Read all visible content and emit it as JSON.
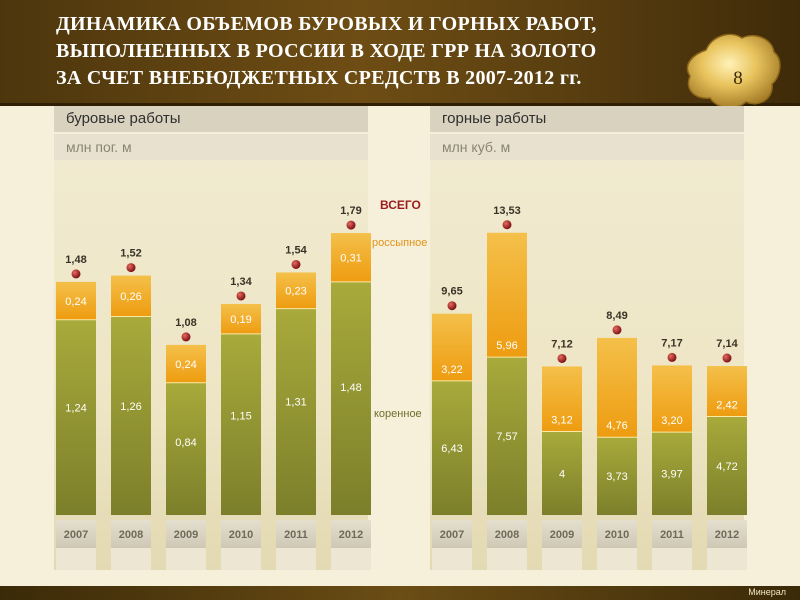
{
  "slide": {
    "title": "ДИНАМИКА ОБЪЕМОВ БУРОВЫХ И ГОРНЫХ РАБОТ,\nВЫПОЛНЕННЫХ В РОССИИ В ХОДЕ ГРР НА ЗОЛОТО\nЗА СЧЕТ ВНЕБЮДЖЕТНЫХ СРЕДСТВ В 2007-2012 гг.",
    "number": "8",
    "footer_brand": "Минерал"
  },
  "legend": {
    "total": "ВСЕГО",
    "placer": "россыпное",
    "bedrock": "коренное"
  },
  "colors": {
    "bedrock": "#8f9230",
    "placer": "#f2a717",
    "marker": "#a31f24",
    "total_label": "#9b1c1c"
  },
  "chart_data": [
    {
      "type": "bar",
      "stacked": true,
      "title": "буровые работы",
      "unit": "млн пог. м",
      "categories": [
        "2007",
        "2008",
        "2009",
        "2010",
        "2011",
        "2012"
      ],
      "series": [
        {
          "name": "коренное",
          "values": [
            1.24,
            1.26,
            0.84,
            1.15,
            1.31,
            1.48
          ],
          "labels": [
            "1,24",
            "1,26",
            "0,84",
            "1,15",
            "1,31",
            "1,48"
          ]
        },
        {
          "name": "россыпное",
          "values": [
            0.24,
            0.26,
            0.24,
            0.19,
            0.23,
            0.31
          ],
          "labels": [
            "0,24",
            "0,26",
            "0,24",
            "0,19",
            "0,23",
            "0,31"
          ]
        }
      ],
      "totals": [
        1.48,
        1.52,
        1.08,
        1.34,
        1.54,
        1.79
      ],
      "total_labels": [
        "1,48",
        "1,52",
        "1,08",
        "1,34",
        "1,54",
        "1,79"
      ],
      "ylim": [
        0,
        2.0
      ]
    },
    {
      "type": "bar",
      "stacked": true,
      "title": "горные работы",
      "unit": "млн куб. м",
      "categories": [
        "2007",
        "2008",
        "2009",
        "2010",
        "2011",
        "2012"
      ],
      "series": [
        {
          "name": "коренное",
          "values": [
            6.43,
            7.57,
            4.0,
            3.73,
            3.97,
            4.72
          ],
          "labels": [
            "6,43",
            "7,57",
            "4",
            "3,73",
            "3,97",
            "4,72"
          ]
        },
        {
          "name": "россыпное",
          "values": [
            3.22,
            5.96,
            3.12,
            4.76,
            3.2,
            2.42
          ],
          "labels": [
            "3,22",
            "5,96",
            "3,12",
            "4,76",
            "3,20",
            "2,42"
          ]
        }
      ],
      "totals": [
        9.65,
        13.53,
        7.12,
        8.49,
        7.17,
        7.14
      ],
      "total_labels": [
        "9,65",
        "13,53",
        "7,12",
        "8,49",
        "7,17",
        "7,14"
      ],
      "ylim": [
        0,
        15.1
      ]
    }
  ]
}
